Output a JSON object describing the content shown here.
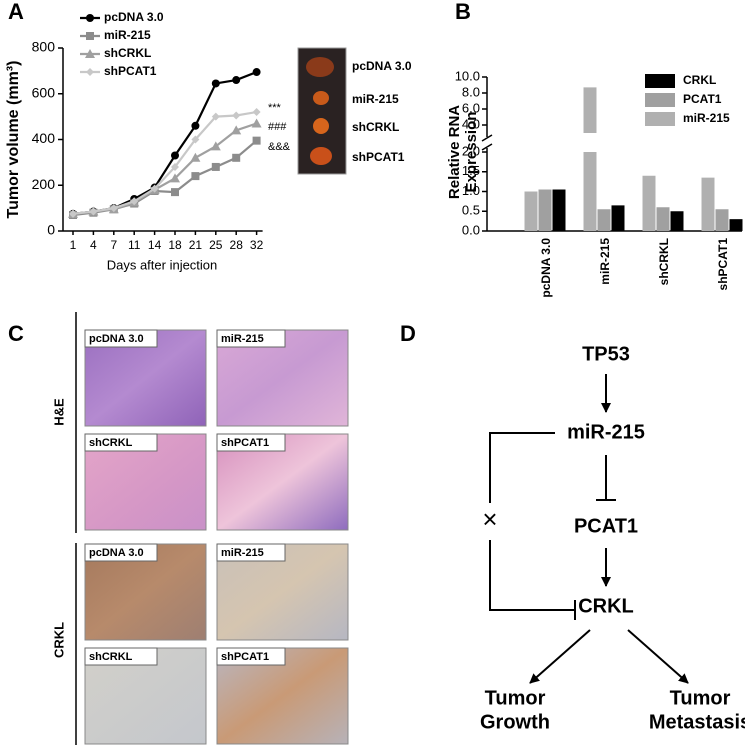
{
  "panel_labels": [
    "A",
    "B",
    "C",
    "D"
  ],
  "chart_data": [
    {
      "type": "line",
      "y_label": "Tumor volume (mm³)",
      "x_label": "Days after injection",
      "categories": [
        "1",
        "4",
        "7",
        "11",
        "14",
        "18",
        "21",
        "25",
        "28",
        "32"
      ],
      "ylim": [
        0,
        800
      ],
      "yticks": [
        0,
        200,
        400,
        600,
        800
      ],
      "series": [
        {
          "name": "pcDNA 3.0",
          "color": "#000000",
          "marker": "circle",
          "values": [
            75,
            85,
            100,
            140,
            190,
            330,
            460,
            645,
            660,
            695
          ]
        },
        {
          "name": "miR-215",
          "color": "#8c8c8c",
          "marker": "square",
          "values": [
            70,
            80,
            95,
            120,
            175,
            170,
            240,
            280,
            320,
            395
          ]
        },
        {
          "name": "shCRKL",
          "color": "#a0a0a0",
          "marker": "triangle",
          "values": [
            75,
            85,
            95,
            125,
            180,
            230,
            320,
            370,
            440,
            470
          ]
        },
        {
          "name": "shPCAT1",
          "color": "#c8c8c8",
          "marker": "diamond",
          "values": [
            75,
            85,
            100,
            130,
            185,
            280,
            400,
            500,
            505,
            520
          ]
        }
      ],
      "annotations": [
        {
          "text": "***",
          "color": "#a0a0a0"
        },
        {
          "text": "###",
          "color": "#a0a0a0"
        },
        {
          "text": "&&&",
          "color": "#d0d0d0"
        }
      ]
    },
    {
      "type": "bar",
      "y_label": [
        "Relative RNA",
        "Expression"
      ],
      "categories": [
        "pcDNA 3.0",
        "miR-215",
        "shCRKL",
        "shPCAT1"
      ],
      "ylim": [
        0,
        10
      ],
      "ybreak": [
        2,
        3
      ],
      "yticks": [
        {
          "value": 0,
          "label": "0.0"
        },
        {
          "value": 0.5,
          "label": "0.5"
        },
        {
          "value": 1,
          "label": "1.0"
        },
        {
          "value": 1.5,
          "label": "1.5"
        },
        {
          "value": 2,
          "label": "2.0"
        },
        {
          "value": 4,
          "label": "4.0"
        },
        {
          "value": 6,
          "label": "6.0"
        },
        {
          "value": 8,
          "label": "8.0"
        },
        {
          "value": 10,
          "label": "10.0"
        }
      ],
      "series": [
        {
          "name": "miR-215",
          "color": "#b0b0b0",
          "values": [
            1.0,
            8.7,
            1.4,
            1.35
          ]
        },
        {
          "name": "PCAT1",
          "color": "#a0a0a0",
          "values": [
            1.05,
            0.55,
            0.6,
            0.55
          ]
        },
        {
          "name": "CRKL",
          "color": "#000000",
          "values": [
            1.05,
            0.65,
            0.5,
            0.3
          ]
        }
      ],
      "legend_order": [
        "CRKL",
        "PCAT1",
        "miR-215"
      ]
    }
  ],
  "tumor_photo": {
    "labels": [
      "pcDNA 3.0",
      "miR-215",
      "shCRKL",
      "shPCAT1"
    ]
  },
  "histology": {
    "rows": [
      {
        "label": "H&E",
        "tiles": [
          "pcDNA 3.0",
          "miR-215",
          "shCRKL",
          "shPCAT1"
        ]
      },
      {
        "label": "CRKL",
        "tiles": [
          "pcDNA 3.0",
          "miR-215",
          "shCRKL",
          "shPCAT1"
        ]
      }
    ]
  },
  "diagram": {
    "nodes": [
      {
        "lines": [
          "TP53"
        ]
      },
      {
        "lines": [
          "miR-215"
        ]
      },
      {
        "lines": [
          "PCAT1"
        ]
      },
      {
        "lines": [
          "CRKL"
        ]
      },
      {
        "lines": [
          "Tumor",
          "Growth"
        ]
      },
      {
        "lines": [
          "Tumor",
          "Metastasis"
        ]
      }
    ],
    "blocked": "×"
  }
}
